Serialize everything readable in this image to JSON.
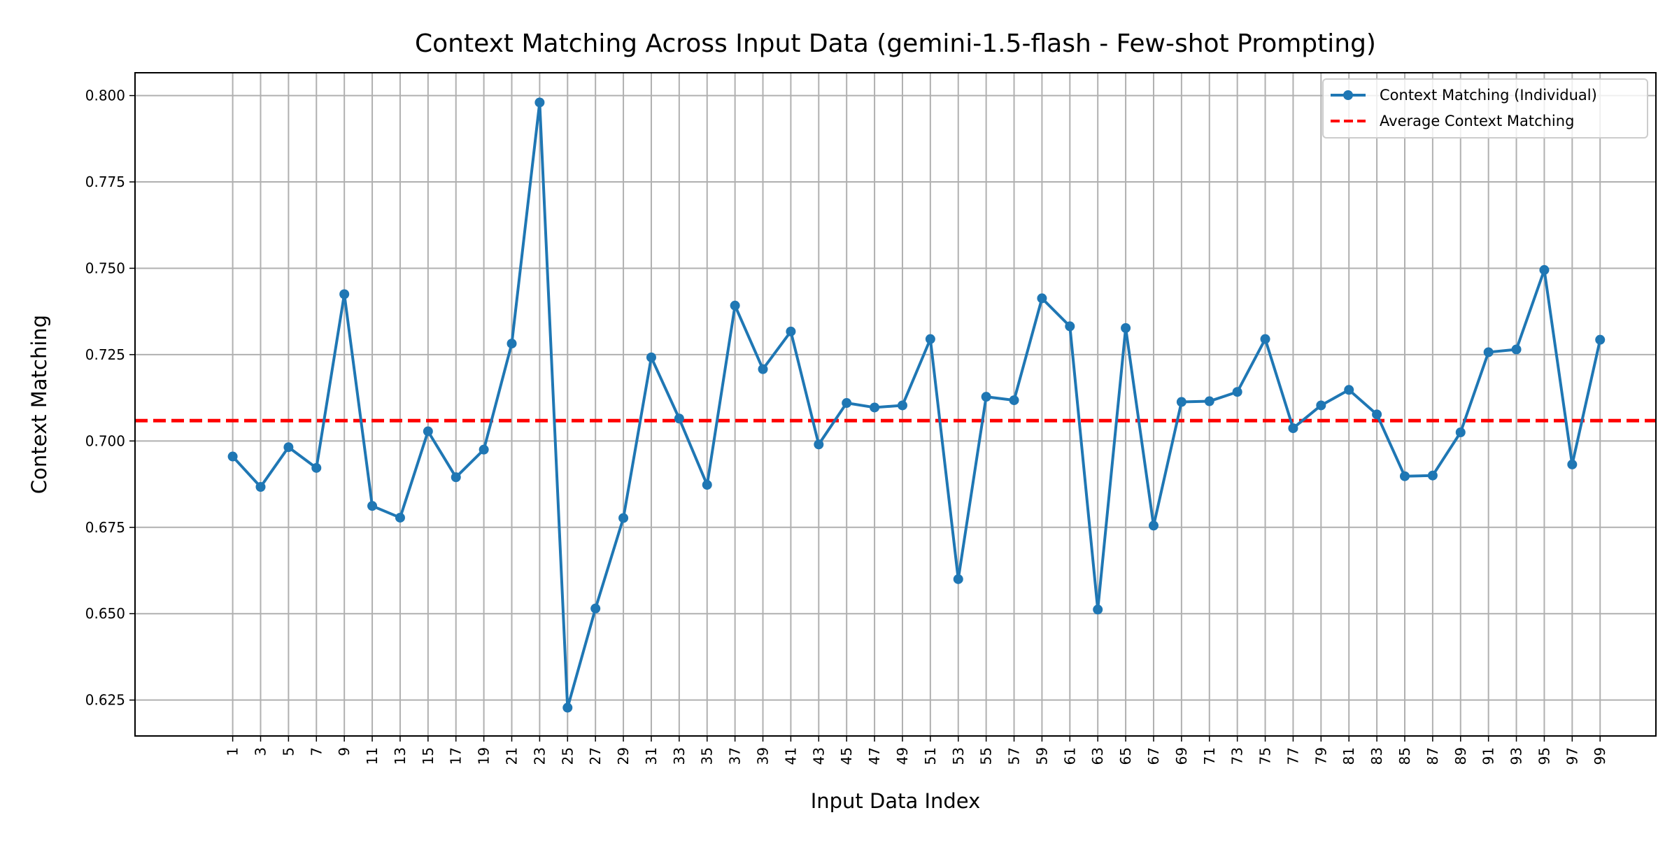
{
  "chart_data": {
    "type": "line",
    "title": "Context Matching Across Input Data (gemini-1.5-flash - Few-shot Prompting)",
    "xlabel": "Input Data Index",
    "ylabel": "Context Matching",
    "x": [
      1,
      3,
      5,
      7,
      9,
      11,
      13,
      15,
      17,
      19,
      21,
      23,
      25,
      27,
      29,
      31,
      33,
      35,
      37,
      39,
      41,
      43,
      45,
      47,
      49,
      51,
      53,
      55,
      57,
      59,
      61,
      63,
      65,
      67,
      69,
      71,
      73,
      75,
      77,
      79,
      81,
      83,
      85,
      87,
      89,
      91,
      93,
      95,
      97,
      99
    ],
    "series": [
      {
        "name": "Context Matching (Individual)",
        "color": "#1f77b4",
        "marker": "circle",
        "y": [
          0.6955,
          0.6867,
          0.6982,
          0.6922,
          0.7425,
          0.6812,
          0.6778,
          0.7028,
          0.6895,
          0.6975,
          0.7282,
          0.798,
          0.6228,
          0.6515,
          0.6777,
          0.7242,
          0.7065,
          0.6873,
          0.7392,
          0.7208,
          0.7317,
          0.699,
          0.711,
          0.7097,
          0.7103,
          0.7295,
          0.66,
          0.7128,
          0.7118,
          0.7413,
          0.7332,
          0.6512,
          0.7327,
          0.6755,
          0.7113,
          0.7115,
          0.7142,
          0.7295,
          0.7037,
          0.7103,
          0.7148,
          0.7077,
          0.6898,
          0.69,
          0.7025,
          0.7257,
          0.7265,
          0.7495,
          0.6932,
          0.7293
        ]
      },
      {
        "name": "Average Context Matching",
        "color": "#ff0000",
        "style": "dashed",
        "y": 0.7059
      }
    ],
    "xticks": [
      "1",
      "3",
      "5",
      "7",
      "9",
      "11",
      "13",
      "15",
      "17",
      "19",
      "21",
      "23",
      "25",
      "27",
      "29",
      "31",
      "33",
      "35",
      "37",
      "39",
      "41",
      "43",
      "45",
      "47",
      "49",
      "51",
      "53",
      "55",
      "57",
      "59",
      "61",
      "63",
      "65",
      "67",
      "69",
      "71",
      "73",
      "75",
      "77",
      "79",
      "81",
      "83",
      "85",
      "87",
      "89",
      "91",
      "93",
      "95",
      "97",
      "99"
    ],
    "yticks": [
      "0.625",
      "0.650",
      "0.675",
      "0.700",
      "0.725",
      "0.750",
      "0.775",
      "0.800"
    ],
    "xlim": [
      -6.0,
      103.0
    ],
    "ylim": [
      0.6146,
      0.8066
    ],
    "grid": true,
    "legend_position": "top-right"
  }
}
